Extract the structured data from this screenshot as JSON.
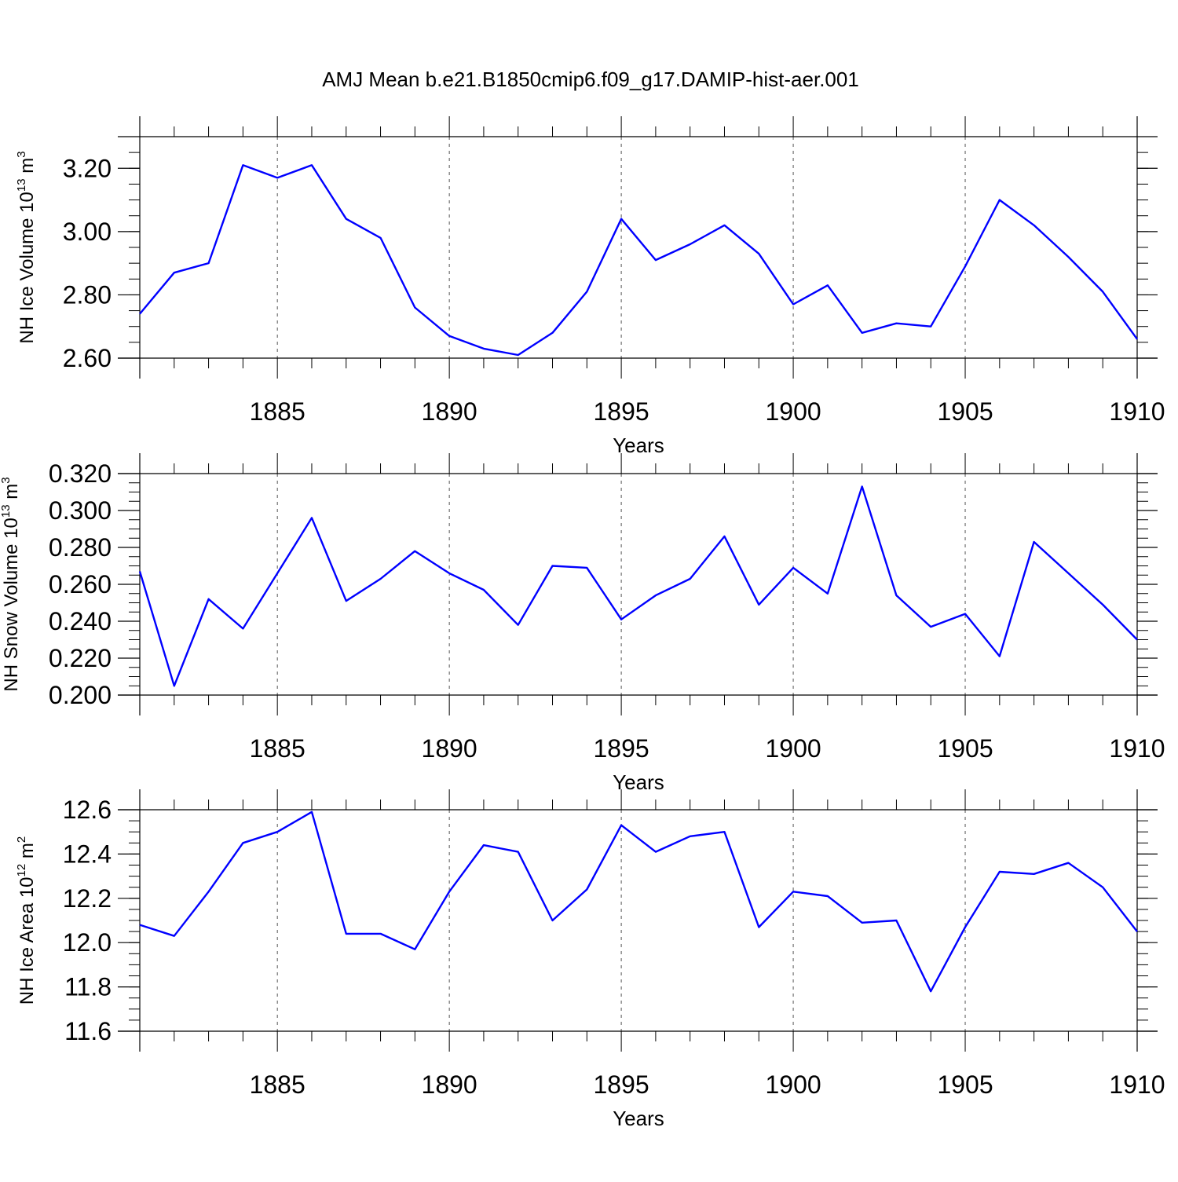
{
  "title": "AMJ Mean b.e21.B1850cmip6.f09_g17.DAMIP-hist-aer.001",
  "colors": {
    "line": "#0000ff",
    "axis": "#000000",
    "grid": "#555555"
  },
  "chart_data": [
    {
      "type": "line",
      "ylabel": {
        "main": "NH Ice Volume 10",
        "exp": "13",
        "unit": " m",
        "unit_exp": "3"
      },
      "xlabel": "Years",
      "xlim": [
        1881,
        1910
      ],
      "ylim": [
        2.6,
        3.3
      ],
      "grid": "vertical dashed at major x ticks",
      "x_ticks": [
        1885,
        1890,
        1895,
        1900,
        1905,
        1910
      ],
      "y_ticks": [
        2.6,
        2.8,
        3.0,
        3.2
      ],
      "y_tick_labels": [
        "2.60",
        "2.80",
        "3.00",
        "3.20"
      ],
      "y_minor_step": 0.05,
      "x": [
        1881,
        1882,
        1883,
        1884,
        1885,
        1886,
        1887,
        1888,
        1889,
        1890,
        1891,
        1892,
        1893,
        1894,
        1895,
        1896,
        1897,
        1898,
        1899,
        1900,
        1901,
        1902,
        1903,
        1904,
        1905,
        1906,
        1907,
        1908,
        1909,
        1910
      ],
      "values": [
        2.74,
        2.87,
        2.9,
        3.21,
        3.17,
        3.21,
        3.04,
        2.98,
        2.76,
        2.67,
        2.63,
        2.61,
        2.68,
        2.81,
        3.04,
        2.91,
        2.96,
        3.02,
        2.93,
        2.77,
        2.83,
        2.68,
        2.71,
        2.7,
        2.89,
        3.1,
        3.02,
        2.92,
        2.81,
        2.66
      ]
    },
    {
      "type": "line",
      "ylabel": {
        "main": "NH Snow Volume 10",
        "exp": "13",
        "unit": " m",
        "unit_exp": "3"
      },
      "xlabel": "Years",
      "xlim": [
        1881,
        1910
      ],
      "ylim": [
        0.2,
        0.32
      ],
      "grid": "vertical dashed at major x ticks",
      "x_ticks": [
        1885,
        1890,
        1895,
        1900,
        1905,
        1910
      ],
      "y_ticks": [
        0.2,
        0.22,
        0.24,
        0.26,
        0.28,
        0.3,
        0.32
      ],
      "y_tick_labels": [
        "0.200",
        "0.220",
        "0.240",
        "0.260",
        "0.280",
        "0.300",
        "0.320"
      ],
      "y_minor_step": 0.005,
      "x": [
        1881,
        1882,
        1883,
        1884,
        1885,
        1886,
        1887,
        1888,
        1889,
        1890,
        1891,
        1892,
        1893,
        1894,
        1895,
        1896,
        1897,
        1898,
        1899,
        1900,
        1901,
        1902,
        1903,
        1904,
        1905,
        1906,
        1907,
        1908,
        1909,
        1910
      ],
      "values": [
        0.267,
        0.205,
        0.252,
        0.236,
        0.266,
        0.296,
        0.251,
        0.263,
        0.278,
        0.266,
        0.257,
        0.238,
        0.27,
        0.269,
        0.241,
        0.254,
        0.263,
        0.286,
        0.249,
        0.269,
        0.255,
        0.313,
        0.254,
        0.237,
        0.244,
        0.221,
        0.283,
        0.266,
        0.249,
        0.23
      ]
    },
    {
      "type": "line",
      "ylabel": {
        "main": "NH Ice Area 10",
        "exp": "12",
        "unit": " m",
        "unit_exp": "2"
      },
      "xlabel": "Years",
      "xlim": [
        1881,
        1910
      ],
      "ylim": [
        11.6,
        12.6
      ],
      "grid": "vertical dashed at major x ticks",
      "x_ticks": [
        1885,
        1890,
        1895,
        1900,
        1905,
        1910
      ],
      "y_ticks": [
        11.6,
        11.8,
        12.0,
        12.2,
        12.4,
        12.6
      ],
      "y_tick_labels": [
        "11.6",
        "11.8",
        "12.0",
        "12.2",
        "12.4",
        "12.6"
      ],
      "y_minor_step": 0.05,
      "x": [
        1881,
        1882,
        1883,
        1884,
        1885,
        1886,
        1887,
        1888,
        1889,
        1890,
        1891,
        1892,
        1893,
        1894,
        1895,
        1896,
        1897,
        1898,
        1899,
        1900,
        1901,
        1902,
        1903,
        1904,
        1905,
        1906,
        1907,
        1908,
        1909,
        1910
      ],
      "values": [
        12.08,
        12.03,
        12.23,
        12.45,
        12.5,
        12.59,
        12.04,
        12.04,
        11.97,
        12.23,
        12.44,
        12.41,
        12.1,
        12.24,
        12.53,
        12.41,
        12.48,
        12.5,
        12.07,
        12.23,
        12.21,
        12.09,
        12.1,
        11.78,
        12.07,
        12.32,
        12.31,
        12.36,
        12.25,
        12.05
      ]
    }
  ]
}
